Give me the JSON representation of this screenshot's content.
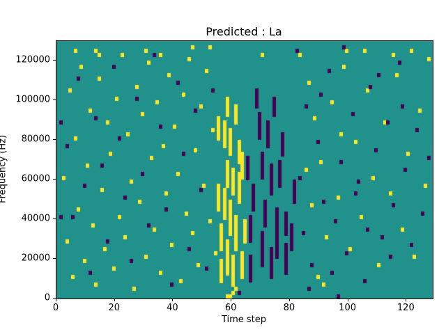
{
  "figure": {
    "background": "#ffffff"
  },
  "chart_data": {
    "type": "heatmap",
    "title": "Predicted : La",
    "xlabel": "Time step",
    "ylabel": "Frequency (Hz)",
    "x_range": [
      0,
      129
    ],
    "y_range": [
      0,
      130000
    ],
    "x_ticks": [
      0,
      20,
      40,
      60,
      80,
      100,
      120
    ],
    "y_ticks": [
      0,
      20000,
      40000,
      60000,
      80000,
      100000,
      120000
    ],
    "grid": {
      "cols": 129,
      "rows": 65
    },
    "cell_freq_hz": 2000,
    "legend": "none",
    "colors": {
      "background": "#21918c",
      "high": "#fde725",
      "low": "#440154",
      "frame": "#000000"
    },
    "yellow_streaks": [
      [
        56,
        4,
        9
      ],
      [
        56,
        12,
        18
      ],
      [
        57,
        20,
        27
      ],
      [
        58,
        6,
        14
      ],
      [
        58,
        28,
        34
      ],
      [
        59,
        16,
        24
      ],
      [
        60,
        3,
        10
      ],
      [
        60,
        26,
        32
      ],
      [
        61,
        12,
        20
      ],
      [
        62,
        24,
        31
      ],
      [
        62,
        34,
        39
      ],
      [
        63,
        5,
        11
      ],
      [
        59,
        36,
        42
      ],
      [
        57,
        38,
        44
      ],
      [
        61,
        44,
        48
      ],
      [
        55,
        22,
        28
      ],
      [
        63,
        30,
        36
      ],
      [
        64,
        14,
        19
      ],
      [
        55,
        40,
        45
      ],
      [
        58,
        46,
        50
      ]
    ],
    "purple_streaks": [
      [
        66,
        4,
        10
      ],
      [
        66,
        14,
        20
      ],
      [
        67,
        22,
        28
      ],
      [
        70,
        8,
        16
      ],
      [
        70,
        30,
        36
      ],
      [
        71,
        18,
        24
      ],
      [
        73,
        5,
        12
      ],
      [
        73,
        26,
        33
      ],
      [
        75,
        10,
        22
      ],
      [
        76,
        28,
        34
      ],
      [
        78,
        6,
        13
      ],
      [
        78,
        16,
        21
      ],
      [
        72,
        38,
        44
      ],
      [
        69,
        40,
        46
      ],
      [
        74,
        46,
        50
      ],
      [
        65,
        30,
        35
      ],
      [
        77,
        36,
        41
      ],
      [
        80,
        12,
        18
      ],
      [
        81,
        24,
        29
      ],
      [
        68,
        48,
        52
      ]
    ],
    "yellow_cells": [
      [
        2,
        30
      ],
      [
        3,
        14
      ],
      [
        4,
        52
      ],
      [
        5,
        5
      ],
      [
        6,
        40
      ],
      [
        7,
        22
      ],
      [
        8,
        58
      ],
      [
        9,
        9
      ],
      [
        10,
        33
      ],
      [
        11,
        47
      ],
      [
        12,
        18
      ],
      [
        13,
        3
      ],
      [
        14,
        55
      ],
      [
        15,
        27
      ],
      [
        16,
        12
      ],
      [
        17,
        44
      ],
      [
        18,
        36
      ],
      [
        19,
        7
      ],
      [
        20,
        50
      ],
      [
        21,
        20
      ],
      [
        22,
        61
      ],
      [
        23,
        15
      ],
      [
        24,
        41
      ],
      [
        25,
        29
      ],
      [
        26,
        2
      ],
      [
        27,
        53
      ],
      [
        28,
        24
      ],
      [
        29,
        46
      ],
      [
        30,
        10
      ],
      [
        31,
        59
      ],
      [
        32,
        35
      ],
      [
        33,
        17
      ],
      [
        34,
        49
      ],
      [
        35,
        6
      ],
      [
        36,
        38
      ],
      [
        37,
        26
      ],
      [
        38,
        56
      ],
      [
        39,
        13
      ],
      [
        40,
        43
      ],
      [
        41,
        31
      ],
      [
        42,
        4
      ],
      [
        43,
        51
      ],
      [
        44,
        21
      ],
      [
        45,
        60
      ],
      [
        46,
        16
      ],
      [
        47,
        37
      ],
      [
        48,
        8
      ],
      [
        49,
        48
      ],
      [
        50,
        28
      ],
      [
        51,
        57
      ],
      [
        52,
        19
      ],
      [
        53,
        42
      ],
      [
        54,
        11
      ],
      [
        85,
        32
      ],
      [
        86,
        54
      ],
      [
        87,
        23
      ],
      [
        88,
        45
      ],
      [
        89,
        5
      ],
      [
        90,
        34
      ],
      [
        92,
        15
      ],
      [
        94,
        49
      ],
      [
        96,
        25
      ],
      [
        98,
        58
      ],
      [
        100,
        12
      ],
      [
        102,
        39
      ],
      [
        104,
        20
      ],
      [
        106,
        52
      ],
      [
        108,
        30
      ],
      [
        110,
        8
      ],
      [
        112,
        44
      ],
      [
        114,
        26
      ],
      [
        116,
        56
      ],
      [
        118,
        17
      ],
      [
        120,
        36
      ],
      [
        122,
        10
      ],
      [
        124,
        47
      ],
      [
        126,
        28
      ],
      [
        127,
        60
      ],
      [
        91,
        3
      ],
      [
        97,
        41
      ],
      [
        105,
        62
      ],
      [
        6,
        62
      ],
      [
        14,
        61
      ],
      [
        30,
        62
      ],
      [
        46,
        63
      ],
      [
        70,
        61
      ],
      [
        99,
        62
      ],
      [
        115,
        61
      ],
      [
        13,
        62
      ],
      [
        35,
        61
      ],
      [
        52,
        63
      ],
      [
        83,
        61
      ],
      [
        121,
        62
      ],
      [
        59,
        0
      ],
      [
        60,
        1
      ],
      [
        61,
        2
      ],
      [
        58,
        0
      ]
    ],
    "purple_cells": [
      [
        3,
        38
      ],
      [
        5,
        20
      ],
      [
        7,
        55
      ],
      [
        9,
        28
      ],
      [
        11,
        6
      ],
      [
        13,
        45
      ],
      [
        15,
        33
      ],
      [
        17,
        14
      ],
      [
        19,
        58
      ],
      [
        21,
        40
      ],
      [
        23,
        25
      ],
      [
        25,
        9
      ],
      [
        27,
        50
      ],
      [
        29,
        31
      ],
      [
        31,
        18
      ],
      [
        33,
        61
      ],
      [
        35,
        43
      ],
      [
        37,
        22
      ],
      [
        39,
        3
      ],
      [
        41,
        54
      ],
      [
        43,
        36
      ],
      [
        45,
        12
      ],
      [
        47,
        47
      ],
      [
        49,
        27
      ],
      [
        51,
        7
      ],
      [
        53,
        52
      ],
      [
        83,
        30
      ],
      [
        84,
        16
      ],
      [
        85,
        48
      ],
      [
        87,
        8
      ],
      [
        89,
        39
      ],
      [
        91,
        24
      ],
      [
        93,
        57
      ],
      [
        95,
        19
      ],
      [
        97,
        34
      ],
      [
        99,
        11
      ],
      [
        101,
        46
      ],
      [
        103,
        29
      ],
      [
        105,
        4
      ],
      [
        107,
        53
      ],
      [
        109,
        37
      ],
      [
        111,
        15
      ],
      [
        113,
        44
      ],
      [
        115,
        23
      ],
      [
        117,
        59
      ],
      [
        119,
        32
      ],
      [
        121,
        13
      ],
      [
        123,
        42
      ],
      [
        125,
        21
      ],
      [
        127,
        35
      ],
      [
        82,
        62
      ],
      [
        86,
        2
      ],
      [
        90,
        51
      ],
      [
        94,
        6
      ],
      [
        98,
        63
      ],
      [
        102,
        26
      ],
      [
        106,
        17
      ],
      [
        110,
        56
      ],
      [
        114,
        10
      ],
      [
        118,
        48
      ],
      [
        1,
        20
      ],
      [
        1,
        44
      ],
      [
        62,
        1
      ],
      [
        96,
        0
      ]
    ]
  }
}
